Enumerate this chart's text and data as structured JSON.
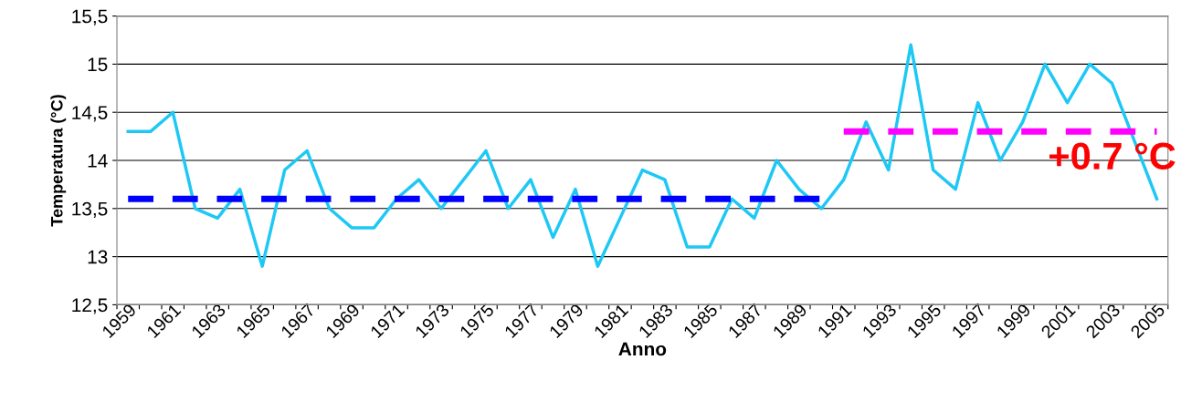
{
  "chart_data": {
    "type": "line",
    "xlabel": "Anno",
    "ylabel": "Temperatura (°C)",
    "categories": [
      "1959",
      null,
      "1961",
      null,
      "1963",
      null,
      "1965",
      null,
      "1967",
      null,
      "1969",
      null,
      "1971",
      null,
      "1973",
      null,
      "1975",
      null,
      "1977",
      null,
      "1979",
      null,
      "1981",
      null,
      "1983",
      null,
      "1985",
      null,
      "1987",
      null,
      "1989",
      null,
      "1991",
      null,
      "1993",
      null,
      "1995",
      null,
      "1997",
      null,
      "1999",
      null,
      "2001",
      null,
      "2003",
      null,
      "2005"
    ],
    "series": [
      {
        "color": "#1ec8f5",
        "line_style": "solid",
        "values": [
          14.3,
          14.3,
          14.5,
          13.5,
          13.4,
          13.7,
          12.9,
          13.9,
          14.1,
          13.5,
          13.3,
          13.3,
          13.6,
          13.8,
          13.5,
          13.8,
          14.1,
          13.5,
          13.8,
          13.2,
          13.7,
          12.9,
          13.4,
          13.9,
          13.8,
          13.1,
          13.1,
          13.6,
          13.4,
          14.0,
          13.7,
          13.5,
          13.8,
          14.4,
          13.9,
          15.2,
          13.9,
          13.7,
          14.6,
          14.0,
          14.4,
          15.0,
          14.6,
          15.0,
          14.8,
          14.2,
          13.6
        ]
      },
      {
        "color": "#0000ff",
        "line_style": "dashed",
        "values": [
          13.6,
          13.6,
          13.6,
          13.6,
          13.6,
          13.6,
          13.6,
          13.6,
          13.6,
          13.6,
          13.6,
          13.6,
          13.6,
          13.6,
          13.6,
          13.6,
          13.6,
          13.6,
          13.6,
          13.6,
          13.6,
          13.6,
          13.6,
          13.6,
          13.6,
          13.6,
          13.6,
          13.6,
          13.6,
          13.6,
          13.6,
          13.6,
          null,
          null,
          null,
          null,
          null,
          null,
          null,
          null,
          null,
          null,
          null,
          null,
          null,
          null,
          null
        ]
      },
      {
        "color": "#ff00ff",
        "line_style": "dashed",
        "values": [
          null,
          null,
          null,
          null,
          null,
          null,
          null,
          null,
          null,
          null,
          null,
          null,
          null,
          null,
          null,
          null,
          null,
          null,
          null,
          null,
          null,
          null,
          null,
          null,
          null,
          null,
          null,
          null,
          null,
          null,
          null,
          null,
          14.3,
          14.3,
          14.3,
          14.3,
          14.3,
          14.3,
          14.3,
          14.3,
          14.3,
          14.3,
          14.3,
          14.3,
          14.3,
          14.3,
          14.3
        ]
      }
    ],
    "ylim": [
      12.5,
      15.5
    ],
    "yticks": [
      {
        "value": 12.5,
        "label": "12,5"
      },
      13,
      {
        "value": 13.5,
        "label": "13,5"
      },
      14,
      {
        "value": 14.5,
        "label": "14,5"
      },
      15,
      {
        "value": 15.5,
        "label": "15,5"
      }
    ],
    "grid": "y",
    "marker": "none",
    "annotations": [
      {
        "text": "+0.7 °C",
        "x": "2003",
        "y": 14.3
      }
    ]
  }
}
